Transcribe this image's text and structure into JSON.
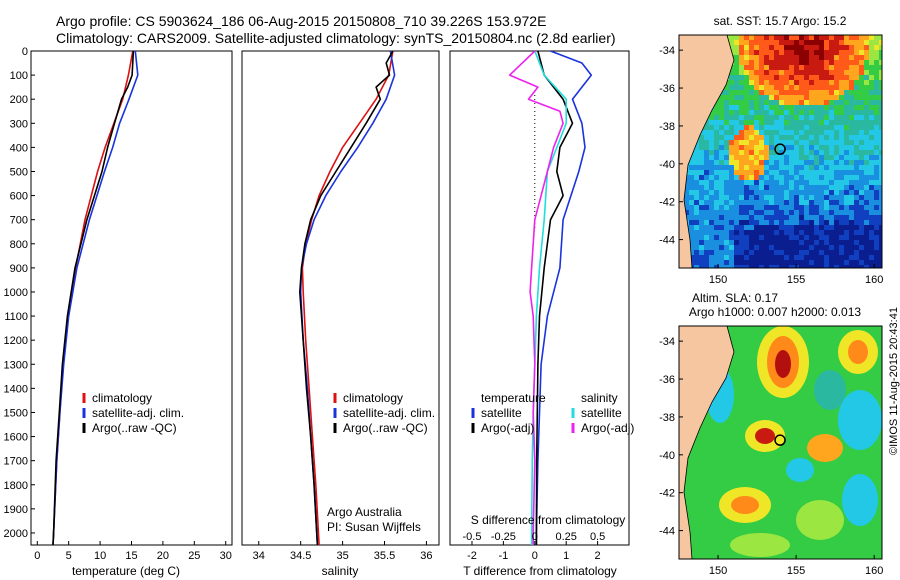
{
  "header": {
    "line1": "Argo profile: CS 5903624_186 06-Aug-2015 20150808_710 39.226S 153.972E",
    "line2": "Climatology: CARS2009. Satellite-adjusted climatology: synTS_20150804.nc (2.8d earlier)"
  },
  "side_label": "©IMOS 11-Aug-2015 20:43:41",
  "colors": {
    "clim": "#dd1111",
    "sat": "#1a33dd",
    "argo": "#000000",
    "cyan": "#22dddd",
    "mag": "#ee22ee"
  },
  "chart_data": [
    {
      "type": "line",
      "name": "temperature-profile",
      "xlabel": "temperature (deg C)",
      "xlim": [
        -1,
        31
      ],
      "ylim": [
        2050,
        0
      ],
      "xticks": [
        "0",
        "5",
        "10",
        "15",
        "20",
        "25",
        "30"
      ],
      "xtick_values": [
        0,
        5,
        10,
        15,
        20,
        25,
        30
      ],
      "yticks": [
        "0",
        "100",
        "200",
        "300",
        "400",
        "500",
        "600",
        "700",
        "800",
        "900",
        "1000",
        "1100",
        "1200",
        "1300",
        "1400",
        "1500",
        "1600",
        "1700",
        "1800",
        "1900",
        "2000"
      ],
      "ytick_values": [
        0,
        100,
        200,
        300,
        400,
        500,
        600,
        700,
        800,
        900,
        1000,
        1100,
        1200,
        1300,
        1400,
        1500,
        1600,
        1700,
        1800,
        1900,
        2000
      ],
      "legend": [
        "climatology",
        "satellite-adj. clim.",
        "Argo(..raw -QC)"
      ],
      "series": [
        {
          "name": "climatology",
          "color": "#dd1111",
          "depth": [
            0,
            100,
            200,
            300,
            400,
            500,
            700,
            900,
            1100,
            1300,
            1500,
            1700,
            2000,
            2050
          ],
          "values": [
            15.2,
            14.5,
            13.6,
            12.2,
            10.8,
            9.6,
            7.6,
            6.1,
            4.9,
            4.1,
            3.6,
            3.1,
            2.6,
            2.5
          ]
        },
        {
          "name": "satellite-adj. clim.",
          "color": "#1a33dd",
          "depth": [
            0,
            100,
            200,
            300,
            400,
            500,
            700,
            900,
            1100,
            1300,
            1500,
            1700,
            2000,
            2050
          ],
          "values": [
            15.6,
            16.0,
            14.6,
            13.1,
            12.0,
            10.7,
            8.3,
            6.3,
            5.0,
            4.2,
            3.6,
            3.1,
            2.6,
            2.5
          ]
        },
        {
          "name": "Argo(..raw -QC)",
          "color": "#000000",
          "depth": [
            0,
            100,
            150,
            200,
            300,
            400,
            500,
            700,
            900,
            1100,
            1300,
            1500,
            1700,
            2000,
            2050
          ],
          "values": [
            15.3,
            15.1,
            14.4,
            13.4,
            12.3,
            11.2,
            10.3,
            7.9,
            6.0,
            4.8,
            4.0,
            3.5,
            3.0,
            2.6,
            2.5
          ]
        }
      ]
    },
    {
      "type": "line",
      "name": "salinity-profile",
      "xlabel": "salinity",
      "xlim": [
        33.8,
        36.15
      ],
      "ylim": [
        2050,
        0
      ],
      "xticks": [
        "34",
        "34.5",
        "35",
        "35.5",
        "36"
      ],
      "xtick_values": [
        34,
        34.5,
        35,
        35.5,
        36
      ],
      "legend": [
        "climatology",
        "satellite-adj. clim.",
        "Argo(..raw -QC)"
      ],
      "annotation": [
        "Argo Australia",
        "PI: Susan Wijffels"
      ],
      "series": [
        {
          "name": "climatology",
          "color": "#dd1111",
          "depth": [
            0,
            100,
            200,
            300,
            400,
            500,
            600,
            700,
            800,
            900,
            1000,
            1200,
            1400,
            1600,
            1800,
            2050
          ],
          "values": [
            35.6,
            35.55,
            35.4,
            35.2,
            35.0,
            34.85,
            34.72,
            34.63,
            34.56,
            34.52,
            34.53,
            34.56,
            34.6,
            34.64,
            34.68,
            34.72
          ]
        },
        {
          "name": "satellite-adj. clim.",
          "color": "#1a33dd",
          "depth": [
            0,
            100,
            200,
            300,
            400,
            500,
            600,
            700,
            800,
            900,
            1000,
            1200,
            1400,
            1600,
            1800,
            2050
          ],
          "values": [
            35.57,
            35.62,
            35.52,
            35.36,
            35.18,
            34.98,
            34.8,
            34.66,
            34.57,
            34.51,
            34.5,
            34.53,
            34.58,
            34.62,
            34.66,
            34.7
          ]
        },
        {
          "name": "Argo(..raw -QC)",
          "color": "#000000",
          "depth": [
            0,
            50,
            100,
            150,
            200,
            300,
            400,
            500,
            600,
            700,
            800,
            900,
            1000,
            1200,
            1400,
            1600,
            1800,
            2050
          ],
          "values": [
            35.6,
            35.52,
            35.56,
            35.4,
            35.45,
            35.28,
            35.1,
            34.92,
            34.74,
            34.62,
            34.55,
            34.51,
            34.49,
            34.53,
            34.57,
            34.62,
            34.66,
            34.7
          ]
        }
      ]
    },
    {
      "type": "line",
      "name": "difference-profile",
      "xlabel": "T difference from climatology",
      "xlabel_top": "S difference from climatology",
      "xlim": [
        -2.7,
        3.0
      ],
      "ylim": [
        2050,
        0
      ],
      "xticks": [
        "-2",
        "-1",
        "0",
        "1",
        "2"
      ],
      "xtick_values": [
        -2,
        -1,
        0,
        1,
        2
      ],
      "xticks_top": [
        "-0.5",
        "-0.25",
        "0",
        "0.25",
        "0.5"
      ],
      "xtick_top_values": [
        -2,
        -1,
        0,
        1,
        2
      ],
      "legend": [
        "temperature",
        "satellite",
        "Argo(-adj)",
        "salinity",
        "satellite",
        "Argo(-adj)"
      ],
      "series": [
        {
          "name": "T satellite",
          "color": "#1a33dd",
          "depth": [
            0,
            50,
            100,
            150,
            200,
            300,
            400,
            500,
            700,
            900,
            1100,
            1300,
            1500,
            1700,
            2000,
            2050
          ],
          "values": [
            0.5,
            1.5,
            1.8,
            1.5,
            1.2,
            1.5,
            1.6,
            1.4,
            0.9,
            0.8,
            0.4,
            0.2,
            0.15,
            0.1,
            0.05,
            0.05
          ]
        },
        {
          "name": "T Argo(-adj)",
          "color": "#000000",
          "depth": [
            0,
            100,
            150,
            200,
            300,
            400,
            500,
            600,
            700,
            900,
            1100,
            1300,
            1500,
            1700,
            2000,
            2050
          ],
          "values": [
            0.1,
            0.3,
            0.6,
            0.9,
            1.2,
            0.8,
            0.7,
            0.9,
            0.5,
            0.3,
            0.15,
            0.1,
            0.08,
            0.06,
            0.05,
            0.05
          ]
        },
        {
          "name": "S satellite",
          "color": "#22dddd",
          "depth": [
            0,
            100,
            200,
            300,
            400,
            500,
            700,
            900,
            1100,
            1300,
            1500,
            1700,
            2000,
            2050
          ],
          "values": [
            0,
            0.3,
            1.0,
            1.0,
            0.7,
            0.4,
            0.3,
            0.15,
            0.05,
            0.0,
            -0.05,
            -0.08,
            -0.1,
            -0.1
          ]
        },
        {
          "name": "S Argo(-adj)",
          "color": "#ee22ee",
          "depth": [
            0,
            100,
            150,
            200,
            250,
            300,
            400,
            500,
            600,
            700,
            900,
            1000,
            1100,
            1300,
            1500,
            1700,
            2000,
            2050
          ],
          "values": [
            0,
            -0.8,
            0.1,
            -0.2,
            0.8,
            0.9,
            0.6,
            0.4,
            0.2,
            0.0,
            -0.1,
            -0.15,
            -0.05,
            0.0,
            -0.05,
            0.0,
            -0.05,
            -0.05
          ]
        }
      ]
    },
    {
      "type": "heatmap",
      "name": "sst-map",
      "title": "sat. SST: 15.7  Argo: 15.2",
      "xlim": [
        147.5,
        160.5
      ],
      "ylim": [
        -45.5,
        -33.2
      ],
      "xticks": [
        "150",
        "155",
        "160"
      ],
      "xtick_values": [
        150,
        155,
        160
      ],
      "yticks": [
        "-34",
        "-36",
        "-38",
        "-40",
        "-42",
        "-44"
      ],
      "ytick_values": [
        -34,
        -36,
        -38,
        -40,
        -42,
        -44
      ],
      "marker": {
        "lon": 153.972,
        "lat": -39.226
      }
    },
    {
      "type": "heatmap",
      "name": "sla-map",
      "title": "Altim. SLA: 0.17",
      "title2": "Argo h1000: 0.007 h2000: 0.013",
      "xlim": [
        147.5,
        160.5
      ],
      "ylim": [
        -45.5,
        -33.2
      ],
      "xticks": [
        "150",
        "155",
        "160"
      ],
      "xtick_values": [
        150,
        155,
        160
      ],
      "yticks": [
        "-34",
        "-36",
        "-38",
        "-40",
        "-42",
        "-44"
      ],
      "ytick_values": [
        -34,
        -36,
        -38,
        -40,
        -42,
        -44
      ],
      "marker": {
        "lon": 153.972,
        "lat": -39.226
      }
    }
  ]
}
